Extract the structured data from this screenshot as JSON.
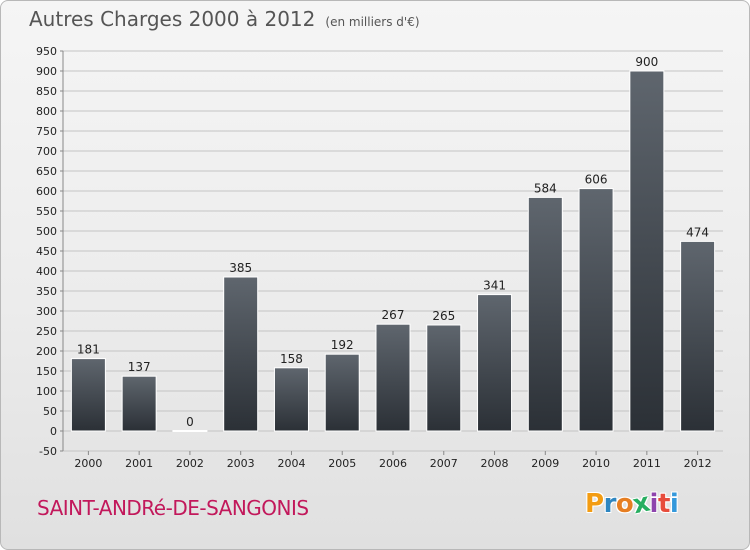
{
  "header": {
    "title": "Autres Charges 2000 à 2012",
    "unit": "(en milliers d'€)"
  },
  "footer": {
    "commune": "SAINT-ANDRé-DE-SANGONIS",
    "logo": "Proxiti",
    "logo_colors": [
      "#f39c12",
      "#2e86c1",
      "#e67e22",
      "#27ae60",
      "#8e44ad",
      "#e74c3c",
      "#3498db"
    ]
  },
  "colors": {
    "bar_top": "#5f666e",
    "bar_bottom": "#2b3036",
    "grid": "#c4c4c4",
    "commune": "#c2185b"
  },
  "chart_data": {
    "type": "bar",
    "title": "Autres Charges 2000 à 2012",
    "subtitle": "(en milliers d'€)",
    "categories": [
      "2000",
      "2001",
      "2002",
      "2003",
      "2004",
      "2005",
      "2006",
      "2007",
      "2008",
      "2009",
      "2010",
      "2011",
      "2012"
    ],
    "values": [
      181,
      137,
      0,
      385,
      158,
      192,
      267,
      265,
      341,
      584,
      606,
      900,
      474
    ],
    "ylim": [
      -50,
      950
    ],
    "ytick_step": 50,
    "grid": true,
    "data_labels": true,
    "xlabel": "",
    "ylabel": ""
  }
}
